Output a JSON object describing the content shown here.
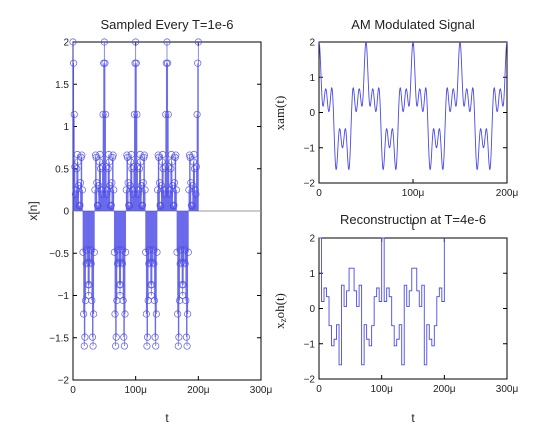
{
  "colors": {
    "series": "#4a4ae6",
    "axis": "#000000",
    "baseline": "#9a9a9a"
  },
  "chart_data": [
    {
      "type": "scatter",
      "style": "stem",
      "title": "Sampled Every T=1e-6",
      "xlabel": "t",
      "ylabel": "x[n]",
      "xlim": [
        0,
        0.0003
      ],
      "ylim": [
        -2,
        2
      ],
      "xtick_values": [
        0,
        0.0001,
        0.0002,
        0.0003
      ],
      "xticks": [
        "0",
        "100μ",
        "200μ",
        "300μ"
      ],
      "yticks": [
        "2",
        "1.5",
        "1",
        "0.5",
        "0",
        "−0.5",
        "−1",
        "−1.5",
        "−2"
      ],
      "signal": {
        "period": 5e-05,
        "duration": 0.0002,
        "sample_interval": 1e-06,
        "peak_value": 2
      },
      "baseline_y": 0
    },
    {
      "type": "line",
      "title": "AM Modulated Signal",
      "xlabel": "t",
      "ylabel": "xam(t)",
      "xlim": [
        0,
        0.0002
      ],
      "ylim": [
        -2,
        2
      ],
      "xtick_values": [
        0,
        0.0001,
        0.0002
      ],
      "xticks": [
        "0",
        "100μ",
        "200μ"
      ],
      "yticks": [
        "2",
        "1",
        "0",
        "−1",
        "−2"
      ],
      "signal": {
        "period": 5e-05,
        "duration": 0.0002
      }
    },
    {
      "type": "line",
      "title": "Reconstruction at T=4e-6",
      "xlabel": "t",
      "ylabel": "x_zoh(t)",
      "xlim": [
        0,
        0.0003
      ],
      "ylim": [
        -2,
        2
      ],
      "xtick_values": [
        0,
        0.0001,
        0.0002,
        0.0003
      ],
      "xticks": [
        "0",
        "100μ",
        "200μ",
        "300μ"
      ],
      "yticks": [
        "2",
        "1",
        "0",
        "−1",
        "−2"
      ],
      "signal": {
        "period": 5e-05,
        "duration": 0.0002,
        "hold_interval": 4e-06
      }
    }
  ]
}
